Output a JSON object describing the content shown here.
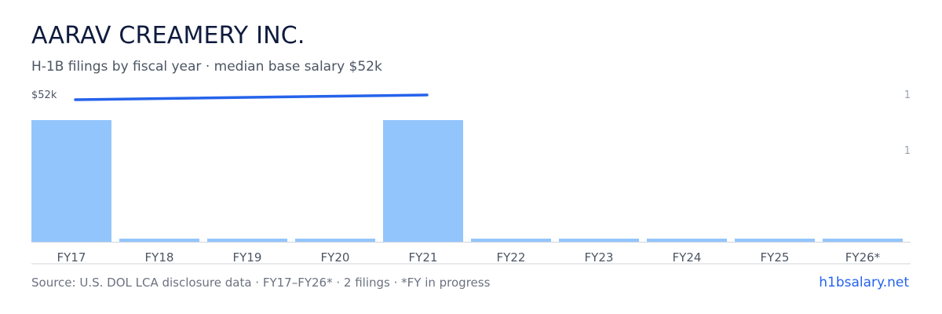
{
  "header": {
    "title": "AARAV CREAMERY INC.",
    "subtitle": "H-1B filings by fiscal year · median base salary $52k"
  },
  "footer": {
    "source": "Source: U.S. DOL LCA disclosure data · FY17–FY26* · 2 filings · *FY in progress",
    "brand": "h1bsalary.net"
  },
  "colors": {
    "bar": "#93c5fd",
    "line": "#2563eb",
    "axis": "#d1d5db",
    "tick_text": "#4b5563",
    "right_tick_text": "#9ca3af"
  },
  "chart_data": {
    "type": "bar",
    "categories": [
      "FY17",
      "FY18",
      "FY19",
      "FY20",
      "FY21",
      "FY22",
      "FY23",
      "FY24",
      "FY25",
      "FY26*"
    ],
    "series": [
      {
        "values": [
          1,
          0,
          0,
          0,
          1,
          0,
          0,
          0,
          0,
          0
        ]
      }
    ],
    "line_series": {
      "categories": [
        "FY17",
        "FY21"
      ],
      "values": [
        52,
        52
      ]
    },
    "left_axis_label": "$52k",
    "right_tick_labels": [
      "1",
      "1"
    ],
    "grid": false,
    "legend": "none"
  }
}
